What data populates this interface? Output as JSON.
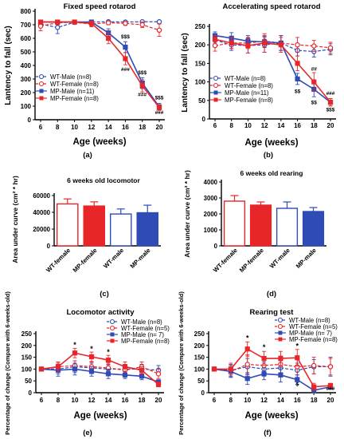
{
  "colors": {
    "wt_male": "#2f4bb5",
    "wt_female": "#e8262a",
    "mp_male": "#2f4bb5",
    "mp_female": "#e8262a",
    "axis": "#000000",
    "annot_blue": "#2f4bb5",
    "annot_red": "#e8262a"
  },
  "panel_labels": [
    "(a)",
    "(b)",
    "(c)",
    "(d)",
    "(e)",
    "(f)"
  ],
  "chart_data": [
    {
      "id": "a",
      "type": "line",
      "title": "Fixed speed rotarod",
      "xlabel": "Age (weeks)",
      "ylabel": "Lantency to fall (sec)",
      "x": [
        6,
        8,
        10,
        12,
        14,
        16,
        18,
        20
      ],
      "ylim": [
        0,
        800
      ],
      "yticks": [
        0,
        100,
        200,
        300,
        400,
        500,
        600,
        700,
        800
      ],
      "legend_position": "bottom-left",
      "series": [
        {
          "name": "WT-Male (n=8)",
          "key": "wt_male",
          "line": "dashed",
          "marker": "circle-open",
          "values": [
            705,
            680,
            718,
            720,
            722,
            720,
            722,
            722
          ],
          "err": [
            20,
            45,
            10,
            8,
            8,
            10,
            8,
            8
          ]
        },
        {
          "name": "WT-Female (n=8)",
          "key": "wt_female",
          "line": "dashed",
          "marker": "circle-open",
          "values": [
            690,
            715,
            718,
            705,
            715,
            710,
            700,
            660
          ],
          "err": [
            35,
            15,
            10,
            20,
            15,
            15,
            20,
            45
          ]
        },
        {
          "name": "MP-Male (n=11)",
          "key": "mp_male",
          "line": "solid",
          "marker": "square-filled",
          "values": [
            720,
            720,
            720,
            720,
            640,
            535,
            270,
            95
          ],
          "err": [
            5,
            5,
            5,
            8,
            30,
            40,
            40,
            25
          ]
        },
        {
          "name": "MP-Female (n=8)",
          "key": "mp_female",
          "line": "solid",
          "marker": "square-filled",
          "values": [
            720,
            720,
            720,
            710,
            600,
            450,
            250,
            90
          ],
          "err": [
            5,
            5,
            5,
            15,
            40,
            45,
            45,
            20
          ]
        }
      ],
      "annotations": [
        {
          "x": 16,
          "y": 600,
          "text": "$$$",
          "color": "annot_blue"
        },
        {
          "x": 16,
          "y": 360,
          "text": "###",
          "color": "annot_red"
        },
        {
          "x": 18,
          "y": 335,
          "text": "$$$",
          "color": "annot_blue"
        },
        {
          "x": 18,
          "y": 175,
          "text": "###",
          "color": "annot_red"
        },
        {
          "x": 20,
          "y": 150,
          "text": "$$$",
          "color": "annot_blue"
        },
        {
          "x": 20,
          "y": 40,
          "text": "###",
          "color": "annot_red"
        }
      ]
    },
    {
      "id": "b",
      "type": "line",
      "title": "Accelerating speed rotarod",
      "xlabel": "Age (weeks)",
      "ylabel": "Lantency to fall (sec)",
      "x": [
        6,
        8,
        10,
        12,
        14,
        16,
        18,
        20
      ],
      "ylim": [
        0,
        250
      ],
      "yticks": [
        0,
        50,
        100,
        150,
        200,
        250
      ],
      "legend_position": "bottom-left",
      "series": [
        {
          "name": "WT-Male (n=8)",
          "key": "wt_male",
          "line": "dashed",
          "marker": "circle-open",
          "values": [
            213,
            200,
            198,
            200,
            205,
            185,
            182,
            188
          ],
          "err": [
            12,
            15,
            20,
            20,
            20,
            15,
            15,
            15
          ]
        },
        {
          "name": "WT-Female (n=8)",
          "key": "wt_female",
          "line": "dashed",
          "marker": "circle-open",
          "values": [
            198,
            205,
            205,
            210,
            205,
            200,
            197,
            192
          ],
          "err": [
            15,
            15,
            15,
            15,
            20,
            20,
            15,
            15
          ]
        },
        {
          "name": "MP-Male (n=11)",
          "key": "mp_male",
          "line": "solid",
          "marker": "square-filled",
          "values": [
            225,
            218,
            210,
            208,
            205,
            108,
            80,
            45
          ],
          "err": [
            10,
            15,
            15,
            15,
            20,
            15,
            20,
            10
          ]
        },
        {
          "name": "MP-Female (n=8)",
          "key": "mp_female",
          "line": "solid",
          "marker": "square-filled",
          "values": [
            215,
            205,
            198,
            205,
            200,
            150,
            100,
            45
          ],
          "err": [
            10,
            15,
            20,
            25,
            20,
            20,
            25,
            10
          ]
        }
      ],
      "annotations": [
        {
          "x": 16,
          "y": 70,
          "text": "$$",
          "color": "annot_blue"
        },
        {
          "x": 18,
          "y": 130,
          "text": "##",
          "color": "annot_red"
        },
        {
          "x": 18,
          "y": 40,
          "text": "$$",
          "color": "annot_blue"
        },
        {
          "x": 20,
          "y": 65,
          "text": "###",
          "color": "annot_red"
        },
        {
          "x": 20,
          "y": 20,
          "text": "$$$",
          "color": "annot_blue"
        }
      ]
    },
    {
      "id": "c",
      "type": "bar",
      "title": "6 weeks old locomotor",
      "xlabel": "",
      "ylabel": "Area under curve (cm² * hr)",
      "categories": [
        "WT-female",
        "MP-female",
        "WT-male",
        "MP-male"
      ],
      "bar_style": [
        "open-red",
        "filled-red",
        "open-blue",
        "filled-blue"
      ],
      "values": [
        50000,
        47500,
        38000,
        39500
      ],
      "err": [
        6000,
        5000,
        6000,
        9000
      ],
      "ylim": [
        0,
        60000
      ],
      "yticks": [
        0,
        20000,
        40000,
        60000
      ]
    },
    {
      "id": "d",
      "type": "bar",
      "title": "6 weeks old rearing",
      "xlabel": "",
      "ylabel": "Area under curve (cm² * hr)",
      "categories": [
        "WT-female",
        "MP-female",
        "WT-male",
        "MP-male"
      ],
      "bar_style": [
        "open-red",
        "filled-red",
        "open-blue",
        "filled-blue"
      ],
      "values": [
        2800,
        2550,
        2350,
        2150
      ],
      "err": [
        350,
        200,
        400,
        250
      ],
      "ylim": [
        0,
        4000
      ],
      "yticks": [
        0,
        1000,
        2000,
        3000,
        4000
      ]
    },
    {
      "id": "e",
      "type": "line",
      "title": "Locomotor activity",
      "xlabel": "Age (weeks)",
      "ylabel": "Percentage of change (Compare with 6-weeks-old)",
      "x": [
        6,
        8,
        10,
        12,
        14,
        16,
        18,
        20
      ],
      "ylim": [
        0,
        250
      ],
      "yticks": [
        0,
        50,
        100,
        150,
        200,
        250
      ],
      "legend_position": "top-right",
      "series": [
        {
          "name": "WT-Male (n=8)",
          "key": "wt_male",
          "line": "dashed",
          "marker": "circle-open",
          "values": [
            100,
            100,
            110,
            105,
            100,
            100,
            100,
            95
          ],
          "err": [
            5,
            20,
            25,
            20,
            20,
            20,
            20,
            20
          ]
        },
        {
          "name": "WT-Female (n=5)",
          "key": "wt_female",
          "line": "dashed",
          "marker": "circle-open",
          "values": [
            100,
            110,
            115,
            110,
            105,
            95,
            110,
            80
          ],
          "err": [
            5,
            15,
            20,
            20,
            20,
            15,
            20,
            20
          ]
        },
        {
          "name": "MP-Male (n= 7)",
          "key": "mp_male",
          "line": "solid",
          "marker": "square-filled",
          "values": [
            100,
            95,
            100,
            90,
            80,
            75,
            70,
            45
          ],
          "err": [
            5,
            25,
            25,
            20,
            20,
            15,
            15,
            10
          ]
        },
        {
          "name": "MP-Female (n=8)",
          "key": "mp_female",
          "line": "solid",
          "marker": "square-filled",
          "values": [
            100,
            110,
            168,
            152,
            138,
            110,
            95,
            35
          ],
          "err": [
            5,
            20,
            20,
            20,
            20,
            20,
            15,
            10
          ]
        }
      ],
      "annotations": [
        {
          "x": 10,
          "y": 193,
          "text": "*",
          "color": "axis"
        },
        {
          "x": 12,
          "y": 176,
          "text": "*",
          "color": "axis"
        },
        {
          "x": 14,
          "y": 162,
          "text": "*",
          "color": "axis"
        }
      ]
    },
    {
      "id": "f",
      "type": "line",
      "title": "Rearing test",
      "xlabel": "Age (weeks)",
      "ylabel": "Percentage of change (Compare with 6-weeks-old)",
      "x": [
        6,
        8,
        10,
        12,
        14,
        16,
        18,
        20
      ],
      "ylim": [
        0,
        250
      ],
      "yticks": [
        0,
        50,
        100,
        150,
        200,
        250
      ],
      "legend_position": "top-right",
      "series": [
        {
          "name": "WT-Male (n=8)",
          "key": "wt_male",
          "line": "dashed",
          "marker": "circle-open",
          "values": [
            100,
            95,
            110,
            100,
            105,
            95,
            110,
            110
          ],
          "err": [
            5,
            25,
            35,
            30,
            30,
            30,
            30,
            40
          ]
        },
        {
          "name": "WT-Female (n=5)",
          "key": "wt_female",
          "line": "dashed",
          "marker": "circle-open",
          "values": [
            100,
            90,
            120,
            115,
            120,
            110,
            115,
            110
          ],
          "err": [
            5,
            25,
            40,
            30,
            35,
            35,
            35,
            35
          ]
        },
        {
          "name": "MP-Male (n= 7)",
          "key": "mp_male",
          "line": "solid",
          "marker": "square-filled",
          "values": [
            100,
            90,
            60,
            80,
            75,
            55,
            10,
            25
          ],
          "err": [
            5,
            25,
            25,
            25,
            30,
            20,
            10,
            10
          ]
        },
        {
          "name": "MP-Female (n=8)",
          "key": "mp_female",
          "line": "solid",
          "marker": "square-filled",
          "values": [
            100,
            100,
            185,
            145,
            145,
            148,
            25,
            30
          ],
          "err": [
            5,
            25,
            30,
            30,
            30,
            35,
            15,
            10
          ]
        }
      ],
      "annotations": [
        {
          "x": 10,
          "y": 222,
          "text": "*",
          "color": "axis"
        },
        {
          "x": 12,
          "y": 182,
          "text": "*",
          "color": "axis"
        },
        {
          "x": 16,
          "y": 188,
          "text": "*",
          "color": "axis"
        },
        {
          "x": 16,
          "y": 28,
          "text": "$",
          "color": "annot_blue"
        },
        {
          "x": 20,
          "y": 10,
          "text": "###",
          "color": "annot_red"
        }
      ]
    }
  ]
}
